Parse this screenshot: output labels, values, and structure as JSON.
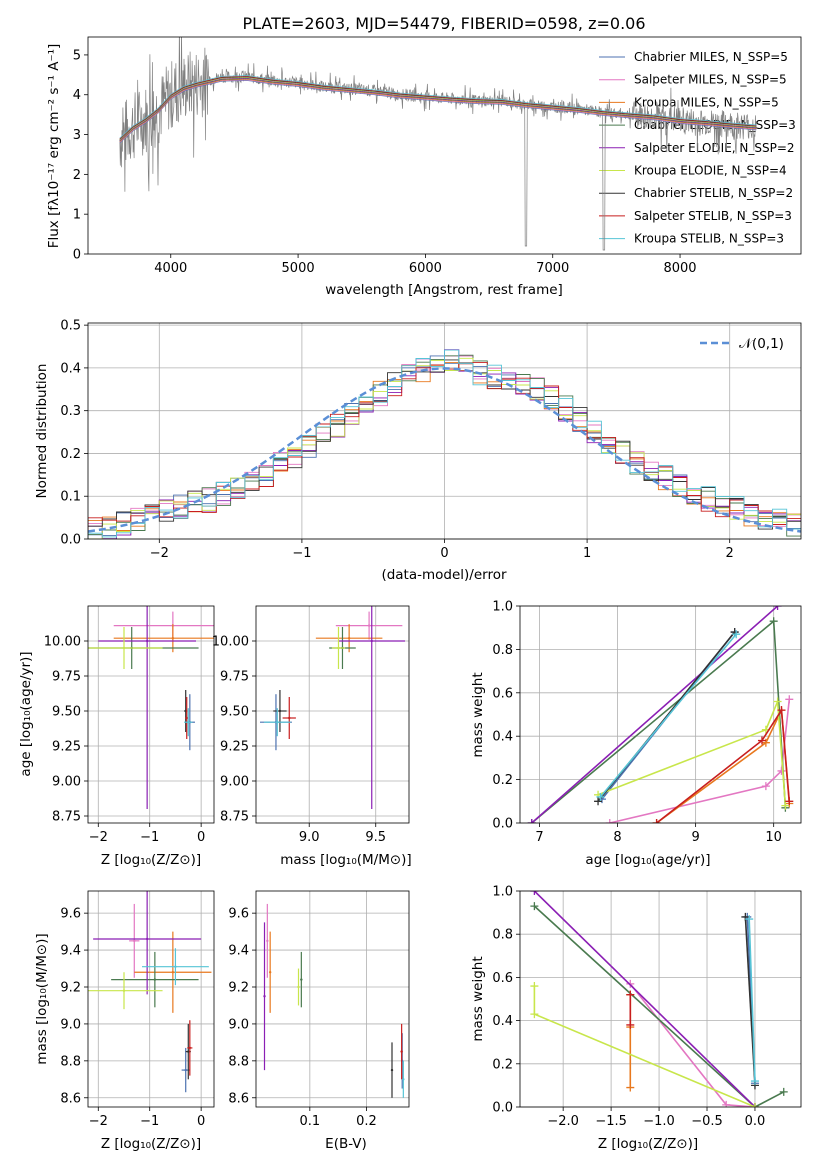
{
  "colors": [
    "#4c72b0",
    "#e377c2",
    "#e8781e",
    "#4a7a4f",
    "#8b1fb4",
    "#c8e64b",
    "#333333",
    "#c81e1e",
    "#56c4d6"
  ],
  "chart_data": [
    {
      "type": "line",
      "title": "PLATE=2603, MJD=54479, FIBERID=0598, z=0.06",
      "xlabel": "wavelength [Angstrom, rest frame]",
      "ylabel": "Flux [fλ10⁻¹⁷ erg cm⁻² s⁻¹ A⁻¹]",
      "xlim": [
        3350,
        8950
      ],
      "ylim": [
        0,
        5.45
      ],
      "xticks": [
        4000,
        5000,
        6000,
        7000,
        8000
      ],
      "yticks": [
        0,
        1,
        2,
        3,
        4,
        5
      ],
      "xticklabels": [
        "4000",
        "5000",
        "6000",
        "7000",
        "8000"
      ],
      "yticklabels": [
        "0",
        "1",
        "2",
        "3",
        "4",
        "5"
      ],
      "grid": false,
      "legend_position": "top-right",
      "data_series": {
        "name": "data",
        "x": [
          3600,
          3700,
          3800,
          3900,
          4000,
          4100,
          4200,
          4400,
          4600,
          4800,
          5000,
          5200,
          5400,
          5600,
          5800,
          6000,
          6200,
          6400,
          6600,
          6800,
          7000,
          7200,
          7400,
          7600,
          7800,
          8000,
          8200,
          8400,
          8600
        ],
        "y": [
          2.9,
          3.2,
          3.4,
          3.6,
          4.0,
          4.2,
          4.3,
          4.45,
          4.45,
          4.35,
          4.3,
          4.2,
          4.15,
          4.1,
          4.0,
          3.95,
          3.9,
          3.85,
          3.85,
          3.75,
          3.7,
          3.65,
          3.55,
          3.5,
          3.45,
          3.35,
          3.3,
          3.25,
          3.2
        ]
      },
      "model_x": [
        3600,
        3700,
        3800,
        3900,
        4000,
        4100,
        4200,
        4400,
        4600,
        4800,
        5000,
        5200,
        5400,
        5600,
        5800,
        6000,
        6200,
        6400,
        6600,
        6800,
        7000,
        7200,
        7400,
        7600,
        7800,
        8000,
        8200,
        8400,
        8600
      ],
      "model_y": [
        2.85,
        3.15,
        3.35,
        3.6,
        3.95,
        4.15,
        4.25,
        4.4,
        4.42,
        4.33,
        4.27,
        4.18,
        4.12,
        4.06,
        3.98,
        3.93,
        3.88,
        3.84,
        3.82,
        3.74,
        3.68,
        3.62,
        3.54,
        3.48,
        3.43,
        3.34,
        3.29,
        3.23,
        3.18
      ],
      "legend": [
        "Chabrier MILES, N_SSP=5",
        "Salpeter MILES, N_SSP=5",
        "Kroupa MILES, N_SSP=5",
        "Chabrier ELODIE, N_SSP=3",
        "Salpeter ELODIE, N_SSP=2",
        "Kroupa ELODIE, N_SSP=4",
        "Chabrier STELIB, N_SSP=2",
        "Salpeter STELIB, N_SSP=3",
        "Kroupa STELIB, N_SSP=3"
      ]
    },
    {
      "type": "step",
      "xlabel": "(data-model)/error",
      "ylabel": "Normed distribution",
      "xlim": [
        -2.5,
        2.5
      ],
      "ylim": [
        0,
        0.505
      ],
      "xticks": [
        -2,
        -1,
        0,
        1,
        2
      ],
      "yticks": [
        0,
        0.1,
        0.2,
        0.3,
        0.4,
        0.5
      ],
      "xticklabels": [
        "−2",
        "−1",
        "0",
        "1",
        "2"
      ],
      "yticklabels": [
        "0.0",
        "0.1",
        "0.2",
        "0.3",
        "0.4",
        "0.5"
      ],
      "grid": true,
      "legend_position": "top-right",
      "legend_label": "𝒩(0,1)",
      "bin_edges": [
        -2.5,
        -2.4,
        -2.3,
        -2.2,
        -2.1,
        -2.0,
        -1.9,
        -1.8,
        -1.7,
        -1.6,
        -1.5,
        -1.4,
        -1.3,
        -1.2,
        -1.1,
        -1.0,
        -0.9,
        -0.8,
        -0.7,
        -0.6,
        -0.5,
        -0.4,
        -0.3,
        -0.2,
        -0.1,
        0.0,
        0.1,
        0.2,
        0.3,
        0.4,
        0.5,
        0.6,
        0.7,
        0.8,
        0.9,
        1.0,
        1.1,
        1.2,
        1.3,
        1.4,
        1.5,
        1.6,
        1.7,
        1.8,
        1.9,
        2.0,
        2.1,
        2.2,
        2.3,
        2.4,
        2.5
      ],
      "hist_mean": [
        0.02,
        0.025,
        0.035,
        0.045,
        0.055,
        0.065,
        0.075,
        0.085,
        0.09,
        0.105,
        0.115,
        0.13,
        0.145,
        0.175,
        0.195,
        0.22,
        0.245,
        0.265,
        0.295,
        0.32,
        0.34,
        0.36,
        0.38,
        0.395,
        0.41,
        0.42,
        0.405,
        0.39,
        0.38,
        0.37,
        0.36,
        0.35,
        0.33,
        0.305,
        0.28,
        0.255,
        0.23,
        0.205,
        0.18,
        0.16,
        0.145,
        0.125,
        0.11,
        0.095,
        0.08,
        0.07,
        0.06,
        0.05,
        0.045,
        0.035
      ],
      "normal_curve": {
        "mean": 0,
        "sigma": 1
      }
    },
    {
      "type": "scatter",
      "xlabel": "Z [log₁₀(Z/Z⊙)]",
      "ylabel": "age  [log₁₀(age/yr)]",
      "xlim": [
        -2.2,
        0.25
      ],
      "ylim": [
        8.7,
        10.25
      ],
      "xticks": [
        -2,
        -1,
        0
      ],
      "yticks": [
        8.75,
        9.0,
        9.25,
        9.5,
        9.75,
        10.0
      ],
      "xticklabels": [
        "−2",
        "−1",
        "0"
      ],
      "yticklabels": [
        "8.75",
        "9.00",
        "9.25",
        "9.50",
        "9.75",
        "10.00"
      ],
      "points": [
        {
          "series": 0,
          "x": -0.22,
          "y": 9.42,
          "xerr": 0.1,
          "yerr": 0.2
        },
        {
          "series": 1,
          "x": -0.55,
          "y": 10.11,
          "xerr": 1.15,
          "yerr": 0.1
        },
        {
          "series": 2,
          "x": -0.55,
          "y": 10.02,
          "xerr": 1.15,
          "yerr": 0.1
        },
        {
          "series": 3,
          "x": -1.35,
          "y": 9.95,
          "xerr": 1.3,
          "yerr": 0.15
        },
        {
          "series": 4,
          "x": -1.05,
          "y": 10.0,
          "xerr": 0.95,
          "yerr": 1.2
        },
        {
          "series": 5,
          "x": -1.5,
          "y": 9.95,
          "xerr": 0.75,
          "yerr": 0.15
        },
        {
          "series": 6,
          "x": -0.3,
          "y": 9.5,
          "xerr": 0.03,
          "yerr": 0.15
        },
        {
          "series": 7,
          "x": -0.28,
          "y": 9.45,
          "xerr": 0.03,
          "yerr": 0.15
        },
        {
          "series": 8,
          "x": -0.25,
          "y": 9.42,
          "xerr": 0.08,
          "yerr": 0.1
        }
      ]
    },
    {
      "type": "scatter",
      "xlabel": "mass [log₁₀(M/M⊙)]",
      "ylabel": "",
      "xlim": [
        8.6,
        9.75
      ],
      "ylim": [
        8.7,
        10.25
      ],
      "xticks": [
        9.0,
        9.5
      ],
      "yticks": [
        8.75,
        9.0,
        9.25,
        9.5,
        9.75,
        10.0
      ],
      "xticklabels": [
        "9.0",
        "9.5"
      ],
      "yticklabels": [
        "8.75",
        "9.00",
        "9.25",
        "9.50",
        "9.75",
        "10.00"
      ],
      "points": [
        {
          "series": 0,
          "x": 8.75,
          "y": 9.42,
          "xerr": 0.12,
          "yerr": 0.2
        },
        {
          "series": 1,
          "x": 9.45,
          "y": 10.11,
          "xerr": 0.25,
          "yerr": 0.1
        },
        {
          "series": 2,
          "x": 9.3,
          "y": 10.02,
          "xerr": 0.25,
          "yerr": 0.1
        },
        {
          "series": 3,
          "x": 9.25,
          "y": 9.95,
          "xerr": 0.1,
          "yerr": 0.15
        },
        {
          "series": 4,
          "x": 9.47,
          "y": 10.0,
          "xerr": 0.25,
          "yerr": 1.2
        },
        {
          "series": 5,
          "x": 9.22,
          "y": 9.95,
          "xerr": 0.05,
          "yerr": 0.15
        },
        {
          "series": 6,
          "x": 8.78,
          "y": 9.5,
          "xerr": 0.05,
          "yerr": 0.15
        },
        {
          "series": 7,
          "x": 8.85,
          "y": 9.45,
          "xerr": 0.05,
          "yerr": 0.15
        },
        {
          "series": 8,
          "x": 8.76,
          "y": 9.42,
          "xerr": 0.1,
          "yerr": 0.1
        }
      ]
    },
    {
      "type": "line",
      "xlabel": "age  [log₁₀(age/yr)]",
      "ylabel": "mass weight",
      "xlim": [
        6.75,
        10.35
      ],
      "ylim": [
        0,
        1.0
      ],
      "xticks": [
        7,
        8,
        9,
        10
      ],
      "yticks": [
        0,
        0.2,
        0.4,
        0.6,
        0.8,
        1.0
      ],
      "xticklabels": [
        "7",
        "8",
        "9",
        "10"
      ],
      "yticklabels": [
        "0.0",
        "0.2",
        "0.4",
        "0.6",
        "0.8",
        "1.0"
      ],
      "grid": true,
      "series": [
        {
          "x": [
            7.8,
            9.5
          ],
          "y": [
            0.11,
            0.88
          ]
        },
        {
          "x": [
            7.9,
            9.9,
            10.1,
            10.2
          ],
          "y": [
            0.0,
            0.17,
            0.24,
            0.57
          ]
        },
        {
          "x": [
            8.5,
            9.9,
            10.1,
            10.2
          ],
          "y": [
            0.0,
            0.37,
            0.52,
            0.09
          ]
        },
        {
          "x": [
            6.9,
            10.0,
            10.15
          ],
          "y": [
            0.0,
            0.93,
            0.07
          ]
        },
        {
          "x": [
            6.9,
            10.05
          ],
          "y": [
            0.0,
            1.0
          ]
        },
        {
          "x": [
            7.75,
            9.9,
            10.05,
            10.15
          ],
          "y": [
            0.13,
            0.43,
            0.56,
            0.08
          ]
        },
        {
          "x": [
            7.75,
            9.5
          ],
          "y": [
            0.1,
            0.88
          ]
        },
        {
          "x": [
            8.5,
            9.85,
            10.1,
            10.2
          ],
          "y": [
            0.0,
            0.38,
            0.52,
            0.1
          ]
        },
        {
          "x": [
            7.78,
            9.52
          ],
          "y": [
            0.12,
            0.87
          ]
        }
      ]
    },
    {
      "type": "scatter",
      "xlabel": "Z [log₁₀(Z/Z⊙)]",
      "ylabel": "mass [log₁₀(M/M⊙)]",
      "xlim": [
        -2.2,
        0.25
      ],
      "ylim": [
        8.55,
        9.72
      ],
      "xticks": [
        -2,
        -1,
        0
      ],
      "yticks": [
        8.6,
        8.8,
        9.0,
        9.2,
        9.4,
        9.6
      ],
      "xticklabels": [
        "−2",
        "−1",
        "0"
      ],
      "yticklabels": [
        "8.6",
        "8.8",
        "9.0",
        "9.2",
        "9.4",
        "9.6"
      ],
      "points": [
        {
          "series": 0,
          "x": -0.3,
          "y": 8.75,
          "xerr": 0.08,
          "yerr": 0.12
        },
        {
          "series": 1,
          "x": -1.3,
          "y": 9.45,
          "xerr": 0.1,
          "yerr": 0.2
        },
        {
          "series": 2,
          "x": -0.55,
          "y": 9.28,
          "xerr": 0.75,
          "yerr": 0.22
        },
        {
          "series": 3,
          "x": -0.9,
          "y": 9.24,
          "xerr": 0.85,
          "yerr": 0.15
        },
        {
          "series": 4,
          "x": -1.05,
          "y": 9.46,
          "xerr": 1.05,
          "yerr": 0.3
        },
        {
          "series": 5,
          "x": -1.5,
          "y": 9.18,
          "xerr": 0.75,
          "yerr": 0.1
        },
        {
          "series": 6,
          "x": -0.25,
          "y": 8.85,
          "xerr": 0.05,
          "yerr": 0.15
        },
        {
          "series": 7,
          "x": -0.22,
          "y": 8.87,
          "xerr": 0.05,
          "yerr": 0.15
        },
        {
          "series": 8,
          "x": -0.5,
          "y": 9.31,
          "xerr": 0.65,
          "yerr": 0.1
        }
      ]
    },
    {
      "type": "scatter",
      "xlabel": "E(B-V)",
      "ylabel": "",
      "xlim": [
        0.005,
        0.275
      ],
      "ylim": [
        8.55,
        9.72
      ],
      "xticks": [
        0.1,
        0.2
      ],
      "yticks": [
        8.6,
        8.8,
        9.0,
        9.2,
        9.4,
        9.6
      ],
      "xticklabels": [
        "0.1",
        "0.2"
      ],
      "yticklabels": [
        "8.6",
        "8.8",
        "9.0",
        "9.2",
        "9.4",
        "9.6"
      ],
      "points": [
        {
          "series": 0,
          "x": 0.263,
          "y": 8.8,
          "yerr": 0.15
        },
        {
          "series": 1,
          "x": 0.025,
          "y": 9.45,
          "yerr": 0.2
        },
        {
          "series": 2,
          "x": 0.03,
          "y": 9.28,
          "yerr": 0.22
        },
        {
          "series": 3,
          "x": 0.085,
          "y": 9.24,
          "yerr": 0.15
        },
        {
          "series": 4,
          "x": 0.02,
          "y": 9.15,
          "yerr": 0.4
        },
        {
          "series": 5,
          "x": 0.08,
          "y": 9.2,
          "yerr": 0.1
        },
        {
          "series": 6,
          "x": 0.245,
          "y": 8.75,
          "yerr": 0.15
        },
        {
          "series": 7,
          "x": 0.262,
          "y": 8.85,
          "yerr": 0.15
        },
        {
          "series": 8,
          "x": 0.265,
          "y": 8.7,
          "yerr": 0.1
        }
      ]
    },
    {
      "type": "line",
      "xlabel": "Z [log₁₀(Z/Z⊙)]",
      "ylabel": "mass weight",
      "xlim": [
        -2.45,
        0.48
      ],
      "ylim": [
        0,
        1.0
      ],
      "xticks": [
        -2.0,
        -1.5,
        -1.0,
        -0.5,
        0.0
      ],
      "yticks": [
        0,
        0.2,
        0.4,
        0.6,
        0.8,
        1.0
      ],
      "xticklabels": [
        "−2.0",
        "−1.5",
        "−1.0",
        "−0.5",
        "0.0"
      ],
      "yticklabels": [
        "0.0",
        "0.2",
        "0.4",
        "0.6",
        "0.8",
        "1.0"
      ],
      "grid": true,
      "series": [
        {
          "x": [
            -0.08,
            0.0
          ],
          "y": [
            0.88,
            0.11
          ]
        },
        {
          "x": [
            -1.3,
            -0.3,
            0.0
          ],
          "y": [
            0.57,
            0.01,
            0.0
          ]
        },
        {
          "x": [
            -1.3,
            -1.3,
            -1.3
          ],
          "y": [
            0.52,
            0.37,
            0.09
          ]
        },
        {
          "x": [
            -2.3,
            0.0,
            0.3
          ],
          "y": [
            0.93,
            0.0,
            0.07
          ]
        },
        {
          "x": [
            -2.3,
            0.0
          ],
          "y": [
            1.0,
            0.0
          ]
        },
        {
          "x": [
            -2.3,
            -2.3,
            0.0
          ],
          "y": [
            0.56,
            0.43,
            0.0
          ]
        },
        {
          "x": [
            -0.1,
            0.0
          ],
          "y": [
            0.88,
            0.1
          ]
        },
        {
          "x": [
            -1.3,
            -1.3
          ],
          "y": [
            0.52,
            0.38
          ]
        },
        {
          "x": [
            -0.06,
            0.0
          ],
          "y": [
            0.87,
            0.12
          ]
        }
      ]
    }
  ]
}
